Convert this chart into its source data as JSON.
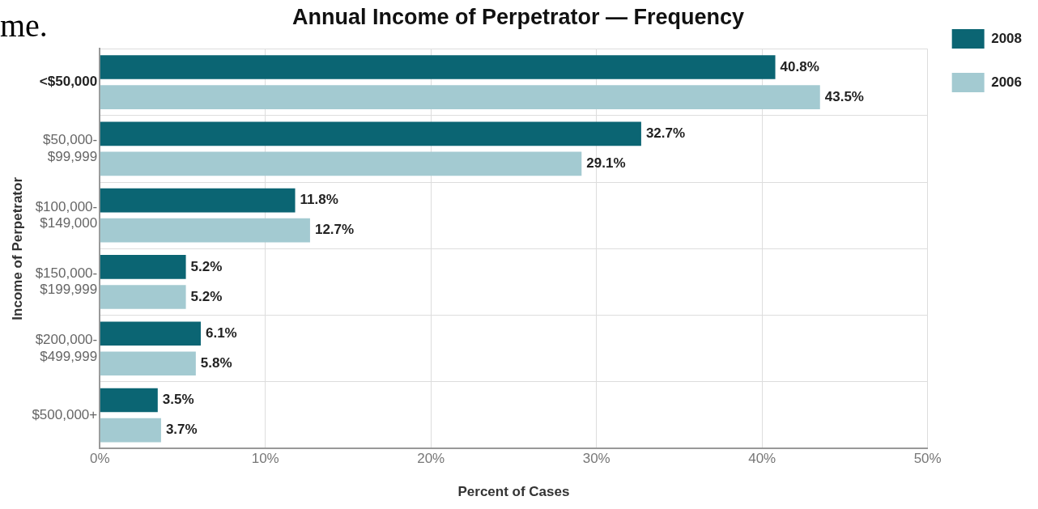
{
  "chart_data": {
    "type": "bar",
    "orientation": "horizontal",
    "title": "Annual Income of Perpetrator — Frequency",
    "xlabel": "Percent of Cases",
    "ylabel": "Income of Perpetrator",
    "annotations": [
      "me."
    ],
    "categories": [
      "<$50,000",
      "$50,000-\n$99,999",
      "$100,000-\n$149,000",
      "$150,000-\n$199,999",
      "$200,000-\n$499,999",
      "$500,000+"
    ],
    "series": [
      {
        "name": "2008",
        "color": "#0b6573",
        "values": [
          40.8,
          32.7,
          11.8,
          5.2,
          6.1,
          3.5
        ],
        "value_labels": [
          "40.8%",
          "32.7%",
          "11.8%",
          "5.2%",
          "6.1%",
          "3.5%"
        ]
      },
      {
        "name": "2006",
        "color": "#a3cad1",
        "values": [
          43.5,
          29.1,
          12.7,
          5.2,
          5.8,
          3.7
        ],
        "value_labels": [
          "43.5%",
          "29.1%",
          "12.7%",
          "5.2%",
          "5.8%",
          "3.7%"
        ]
      }
    ],
    "xlim": [
      0,
      50
    ],
    "xticks": [
      {
        "value": 0,
        "label": "0%"
      },
      {
        "value": 10,
        "label": "10%"
      },
      {
        "value": 20,
        "label": "20%"
      },
      {
        "value": 30,
        "label": "30%"
      },
      {
        "value": 40,
        "label": "40%"
      },
      {
        "value": 50,
        "label": "50%"
      }
    ],
    "grid": true,
    "legend": "top right"
  }
}
